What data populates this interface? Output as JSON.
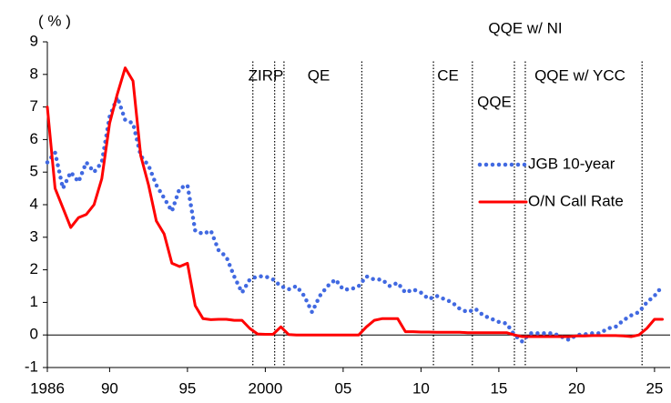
{
  "chart_data": {
    "type": "line",
    "y_label": "( % )",
    "x": [
      1986,
      1986.5,
      1987,
      1987.5,
      1988,
      1988.5,
      1989,
      1989.5,
      1990,
      1990.5,
      1991,
      1991.5,
      1992,
      1992.5,
      1993,
      1993.5,
      1994,
      1994.5,
      1995,
      1995.5,
      1996,
      1996.5,
      1997,
      1997.5,
      1998,
      1998.5,
      1999,
      1999.5,
      2000,
      2000.5,
      2001,
      2001.5,
      2002,
      2002.5,
      2003,
      2003.5,
      2004,
      2004.5,
      2005,
      2005.5,
      2006,
      2006.5,
      2007,
      2007.5,
      2008,
      2008.5,
      2009,
      2009.5,
      2010,
      2010.5,
      2011,
      2011.5,
      2012,
      2012.5,
      2013,
      2013.5,
      2014,
      2014.5,
      2015,
      2015.5,
      2016,
      2016.5,
      2017,
      2017.5,
      2018,
      2018.5,
      2019,
      2019.5,
      2020,
      2020.5,
      2021,
      2021.5,
      2022,
      2022.5,
      2023,
      2023.5,
      2024,
      2024.5,
      2025,
      2025.5
    ],
    "series": [
      {
        "name": "JGB 10-year",
        "color": "#4169e1",
        "style": "dotted",
        "values": [
          5.3,
          5.6,
          4.5,
          5.0,
          4.7,
          5.3,
          5.0,
          5.3,
          6.7,
          7.3,
          6.6,
          6.5,
          5.5,
          5.2,
          4.6,
          4.2,
          3.8,
          4.5,
          4.6,
          3.2,
          3.1,
          3.2,
          2.6,
          2.4,
          1.8,
          1.3,
          1.7,
          1.8,
          1.8,
          1.7,
          1.5,
          1.4,
          1.5,
          1.2,
          0.7,
          1.2,
          1.5,
          1.7,
          1.4,
          1.4,
          1.5,
          1.8,
          1.7,
          1.7,
          1.5,
          1.6,
          1.3,
          1.4,
          1.3,
          1.1,
          1.2,
          1.1,
          1.0,
          0.8,
          0.7,
          0.8,
          0.6,
          0.5,
          0.4,
          0.35,
          0.0,
          -0.2,
          0.05,
          0.05,
          0.05,
          0.05,
          -0.05,
          -0.15,
          0.0,
          0.02,
          0.05,
          0.05,
          0.2,
          0.25,
          0.45,
          0.6,
          0.7,
          1.0,
          1.2,
          1.5
        ]
      },
      {
        "name": "O/N Call Rate",
        "color": "#ff0000",
        "style": "solid",
        "values": [
          7.0,
          4.5,
          3.9,
          3.3,
          3.6,
          3.7,
          4.0,
          4.8,
          6.5,
          7.4,
          8.2,
          7.8,
          5.5,
          4.6,
          3.5,
          3.1,
          2.2,
          2.1,
          2.2,
          0.9,
          0.5,
          0.47,
          0.48,
          0.48,
          0.45,
          0.45,
          0.2,
          0.03,
          0.02,
          0.02,
          0.25,
          0.01,
          0,
          0,
          0,
          0,
          0,
          0,
          0,
          0,
          0,
          0.25,
          0.45,
          0.5,
          0.5,
          0.5,
          0.1,
          0.1,
          0.09,
          0.09,
          0.08,
          0.08,
          0.08,
          0.08,
          0.07,
          0.07,
          0.07,
          0.07,
          0.07,
          0.07,
          0,
          -0.05,
          -0.05,
          -0.05,
          -0.05,
          -0.05,
          -0.05,
          -0.05,
          -0.03,
          -0.03,
          -0.02,
          -0.02,
          -0.02,
          -0.02,
          -0.03,
          -0.05,
          0,
          0.2,
          0.48,
          0.48
        ]
      }
    ],
    "xlim": [
      1986,
      2026
    ],
    "xticks": [
      1986,
      {
        "value": 1990,
        "label": "90"
      },
      {
        "value": 1995,
        "label": "95"
      },
      2000,
      {
        "value": 2005,
        "label": "05"
      },
      {
        "value": 2010,
        "label": "10"
      },
      {
        "value": 2015,
        "label": "15"
      },
      {
        "value": 2020,
        "label": "20"
      },
      {
        "value": 2025,
        "label": "25"
      }
    ],
    "ylim": [
      -1,
      9
    ],
    "yticks": [
      -1,
      0,
      1,
      2,
      3,
      4,
      5,
      6,
      7,
      8,
      9
    ],
    "vlines": [
      1999.2,
      2000.6,
      2001.2,
      2006.2,
      2010.8,
      2013.3,
      2016.0,
      2016.7,
      2024.2
    ],
    "annotations": [
      "ZIRP",
      "QE",
      "CE",
      "QQE",
      "QQE w/ NI",
      "QQE w/ YCC"
    ],
    "legend": "right",
    "grid": false
  }
}
